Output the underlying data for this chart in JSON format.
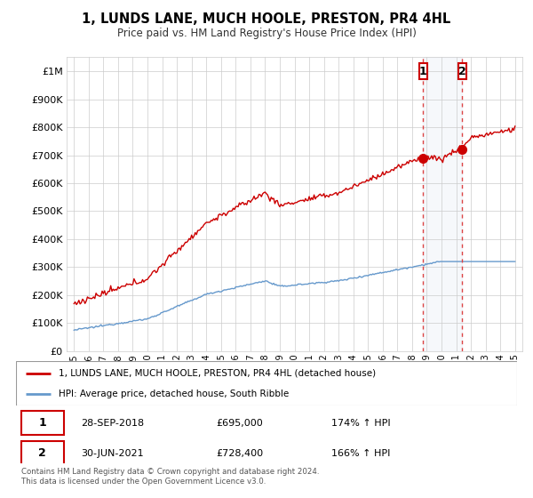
{
  "title": "1, LUNDS LANE, MUCH HOOLE, PRESTON, PR4 4HL",
  "subtitle": "Price paid vs. HM Land Registry's House Price Index (HPI)",
  "legend_line1": "1, LUNDS LANE, MUCH HOOLE, PRESTON, PR4 4HL (detached house)",
  "legend_line2": "HPI: Average price, detached house, South Ribble",
  "transaction1_date": "28-SEP-2018",
  "transaction1_price": "£695,000",
  "transaction1_hpi": "174% ↑ HPI",
  "transaction2_date": "30-JUN-2021",
  "transaction2_price": "£728,400",
  "transaction2_hpi": "166% ↑ HPI",
  "footer": "Contains HM Land Registry data © Crown copyright and database right 2024.\nThis data is licensed under the Open Government Licence v3.0.",
  "red_color": "#cc0000",
  "blue_color": "#6699cc",
  "t1": 2018.75,
  "t2": 2021.42,
  "price1": 695000,
  "price2": 728400,
  "ylim_min": 0,
  "ylim_max": 1050000,
  "xlim_min": 1994.5,
  "xlim_max": 2025.5
}
